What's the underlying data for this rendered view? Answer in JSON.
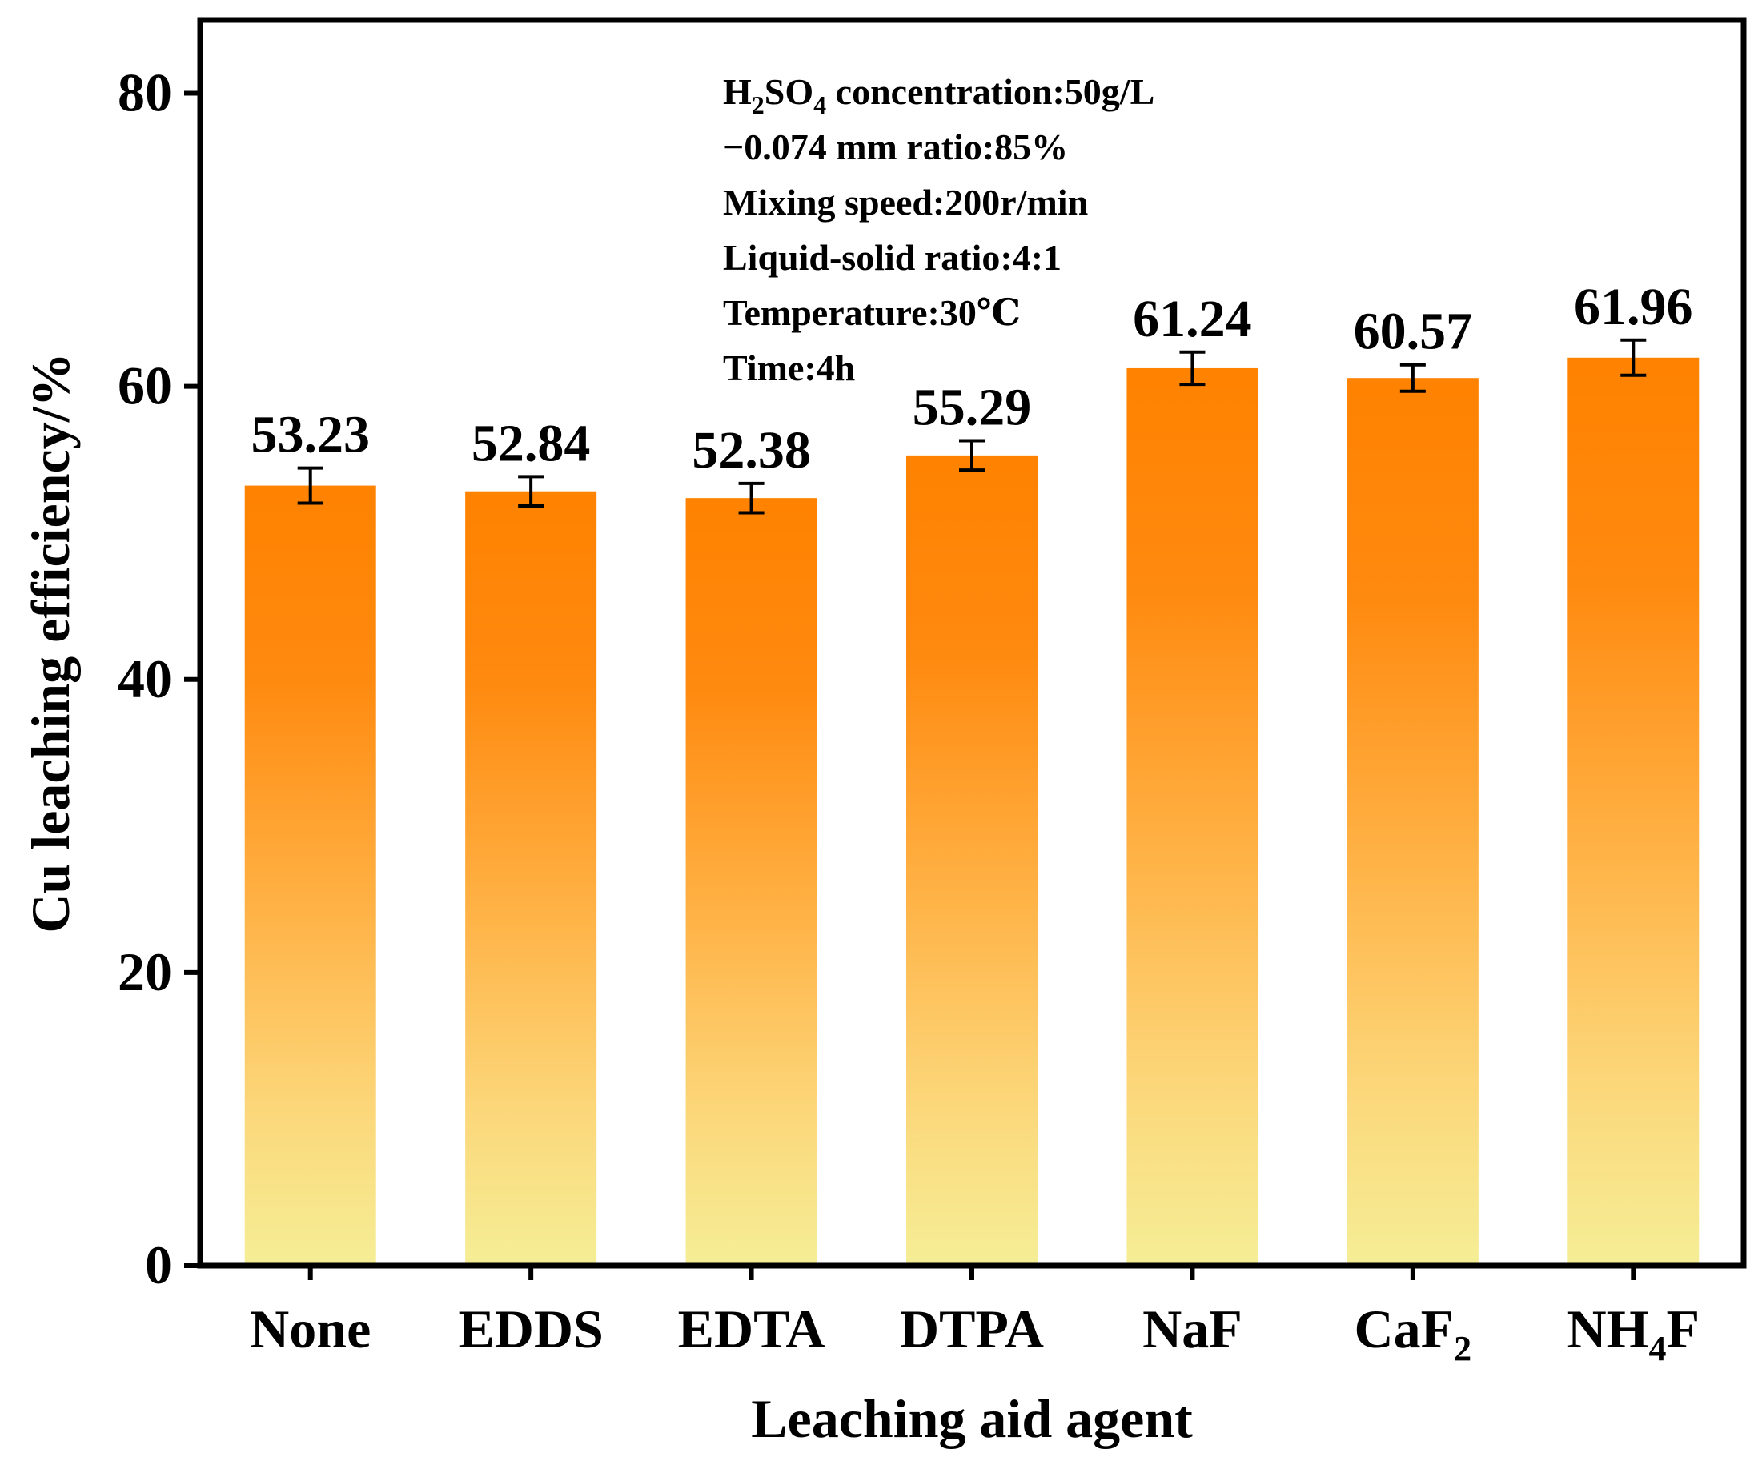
{
  "chart_data": {
    "type": "bar",
    "categories": [
      "None",
      "EDDS",
      "EDTA",
      "DTPA",
      "NaF",
      "CaF2",
      "NH4F"
    ],
    "category_labels": [
      {
        "base": "None",
        "sub": "",
        "tail": ""
      },
      {
        "base": "EDDS",
        "sub": "",
        "tail": ""
      },
      {
        "base": "EDTA",
        "sub": "",
        "tail": ""
      },
      {
        "base": "DTPA",
        "sub": "",
        "tail": ""
      },
      {
        "base": "NaF",
        "sub": "",
        "tail": ""
      },
      {
        "base": "CaF",
        "sub": "2",
        "tail": ""
      },
      {
        "base": "NH",
        "sub": "4",
        "tail": "F"
      }
    ],
    "values": [
      53.23,
      52.84,
      52.38,
      55.29,
      61.24,
      60.57,
      61.96
    ],
    "value_labels": [
      "53.23",
      "52.84",
      "52.38",
      "55.29",
      "61.24",
      "60.57",
      "61.96"
    ],
    "errors": [
      1.2,
      1.0,
      1.0,
      1.0,
      1.1,
      0.9,
      1.2
    ],
    "xlabel": "Leaching aid agent",
    "ylabel": "Cu leaching efficiency/%",
    "ylim": [
      0,
      85
    ],
    "yticks": [
      0,
      20,
      40,
      60,
      80
    ],
    "ytick_labels": [
      "0",
      "20",
      "40",
      "60",
      "80"
    ],
    "grid": false,
    "colors": {
      "bar_top": "#ff8200",
      "bar_mid": "#ffb347",
      "bar_bottom": "#f5ee96",
      "axis": "#000000"
    },
    "annotation_lines": [
      {
        "parts": [
          {
            "t": "H"
          },
          {
            "t": "2",
            "sub": true
          },
          {
            "t": "SO"
          },
          {
            "t": "4",
            "sub": true
          },
          {
            "t": " concentration:50g/L"
          }
        ]
      },
      {
        "parts": [
          {
            "t": "−0.074 mm ratio:85%"
          }
        ]
      },
      {
        "parts": [
          {
            "t": "Mixing speed:200r/min"
          }
        ]
      },
      {
        "parts": [
          {
            "t": "Liquid-solid ratio:4:1"
          }
        ]
      },
      {
        "parts": [
          {
            "t": "Temperature:30℃"
          }
        ]
      },
      {
        "parts": [
          {
            "t": "Time:4h"
          }
        ]
      }
    ]
  }
}
